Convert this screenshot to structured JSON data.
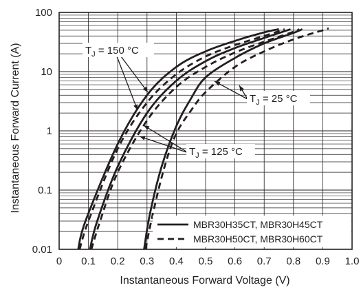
{
  "chart_data": {
    "type": "line",
    "xlabel": "Instantaneous Forward Voltage (V)",
    "ylabel": "Instantaneous Forward Current (A)",
    "xlim": [
      0,
      1.0
    ],
    "ylim": [
      0.01,
      100
    ],
    "y_scale": "log",
    "grid": true,
    "x_ticks": [
      "0",
      "0.1",
      "0.2",
      "0.3",
      "0.4",
      "0.5",
      "0.6",
      "0.7",
      "0.8",
      "0.9",
      "1.0"
    ],
    "y_ticks": [
      "0.01",
      "0.1",
      "1",
      "10",
      "100"
    ],
    "legend": {
      "position": "bottom-right",
      "entries": [
        {
          "label": "MBR30H35CT, MBR30H45CT",
          "style": "solid"
        },
        {
          "label": "MBR30H50CT, MBR30H60CT",
          "style": "dashed"
        }
      ]
    },
    "annotations": [
      {
        "text": "T",
        "sub": "J",
        "rest": " = 150 °C"
      },
      {
        "text": "T",
        "sub": "J",
        "rest": " = 25 °C"
      },
      {
        "text": "T",
        "sub": "J",
        "rest": " = 125 °C"
      }
    ],
    "series": [
      {
        "style": "solid",
        "temperature": "150 °C",
        "points": [
          [
            0.065,
            0.01
          ],
          [
            0.09,
            0.03
          ],
          [
            0.2,
            0.6
          ],
          [
            0.3,
            4
          ],
          [
            0.4,
            12
          ],
          [
            0.5,
            22
          ],
          [
            0.6,
            33
          ],
          [
            0.7,
            46
          ],
          [
            0.75,
            52
          ]
        ]
      },
      {
        "style": "dashed",
        "temperature": "150 °C",
        "points": [
          [
            0.07,
            0.01
          ],
          [
            0.1,
            0.03
          ],
          [
            0.2,
            0.5
          ],
          [
            0.3,
            3
          ],
          [
            0.4,
            9
          ],
          [
            0.5,
            18
          ],
          [
            0.6,
            28
          ],
          [
            0.7,
            40
          ],
          [
            0.77,
            52
          ]
        ]
      },
      {
        "style": "solid",
        "temperature": "125 °C",
        "points": [
          [
            0.105,
            0.01
          ],
          [
            0.13,
            0.03
          ],
          [
            0.2,
            0.25
          ],
          [
            0.3,
            2
          ],
          [
            0.4,
            7
          ],
          [
            0.5,
            15
          ],
          [
            0.6,
            25
          ],
          [
            0.7,
            37
          ],
          [
            0.79,
            52
          ]
        ]
      },
      {
        "style": "dashed",
        "temperature": "125 °C",
        "points": [
          [
            0.11,
            0.01
          ],
          [
            0.14,
            0.03
          ],
          [
            0.2,
            0.2
          ],
          [
            0.3,
            1.5
          ],
          [
            0.4,
            5.5
          ],
          [
            0.5,
            12
          ],
          [
            0.6,
            21
          ],
          [
            0.7,
            32
          ],
          [
            0.8,
            47
          ],
          [
            0.82,
            52
          ]
        ]
      },
      {
        "style": "solid",
        "temperature": "25 °C",
        "points": [
          [
            0.29,
            0.01
          ],
          [
            0.31,
            0.04
          ],
          [
            0.35,
            0.25
          ],
          [
            0.4,
            1.2
          ],
          [
            0.45,
            3.5
          ],
          [
            0.5,
            8
          ],
          [
            0.6,
            17
          ],
          [
            0.7,
            30
          ],
          [
            0.8,
            45
          ],
          [
            0.83,
            52
          ]
        ]
      },
      {
        "style": "dashed",
        "temperature": "25 °C",
        "points": [
          [
            0.295,
            0.01
          ],
          [
            0.32,
            0.04
          ],
          [
            0.36,
            0.25
          ],
          [
            0.4,
            0.9
          ],
          [
            0.45,
            2.2
          ],
          [
            0.5,
            4.5
          ],
          [
            0.6,
            12
          ],
          [
            0.7,
            22
          ],
          [
            0.8,
            35
          ],
          [
            0.9,
            50
          ],
          [
            0.92,
            54
          ]
        ]
      }
    ]
  }
}
